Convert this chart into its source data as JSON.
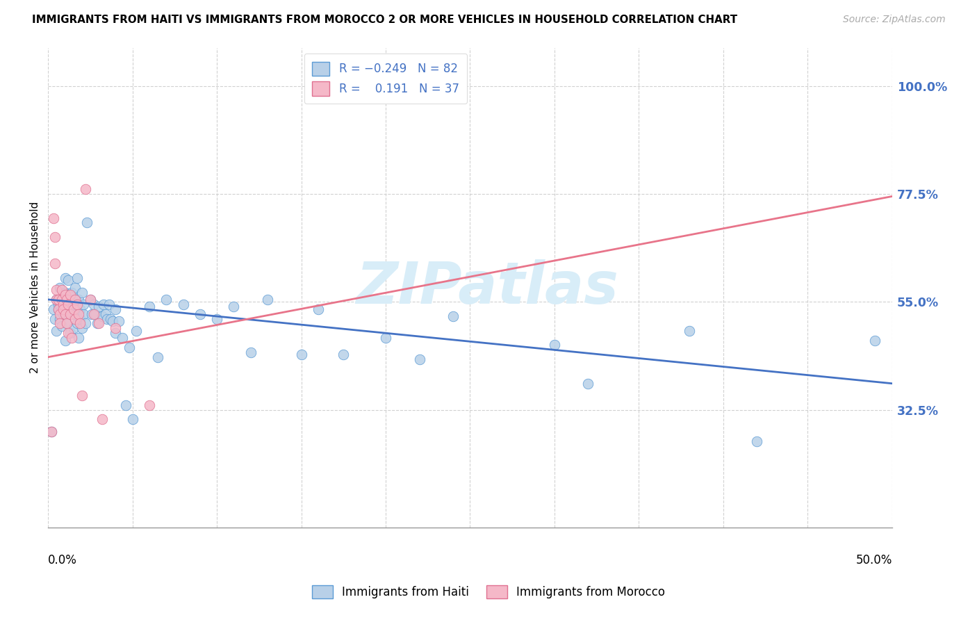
{
  "title": "IMMIGRANTS FROM HAITI VS IMMIGRANTS FROM MOROCCO 2 OR MORE VEHICLES IN HOUSEHOLD CORRELATION CHART",
  "source": "Source: ZipAtlas.com",
  "ylabel": "2 or more Vehicles in Household",
  "ytick_labels": [
    "32.5%",
    "55.0%",
    "77.5%",
    "100.0%"
  ],
  "ytick_vals": [
    0.325,
    0.55,
    0.775,
    1.0
  ],
  "xlim": [
    0.0,
    0.5
  ],
  "ylim": [
    0.08,
    1.08
  ],
  "xtick_label_left": "0.0%",
  "xtick_label_right": "50.0%",
  "haiti_color_fill": "#b8d0e8",
  "haiti_color_edge": "#5b9bd5",
  "morocco_color_fill": "#f5b8c8",
  "morocco_color_edge": "#e07090",
  "haiti_trend_color": "#4472c4",
  "morocco_trend_color": "#e8748a",
  "watermark_text": "ZIPatlas",
  "watermark_color": "#d8edf8",
  "haiti_trend": [
    0.0,
    0.555,
    0.5,
    0.38
  ],
  "morocco_trend": [
    0.0,
    0.435,
    0.5,
    0.77
  ],
  "haiti_points": [
    [
      0.002,
      0.28
    ],
    [
      0.003,
      0.535
    ],
    [
      0.004,
      0.515
    ],
    [
      0.005,
      0.555
    ],
    [
      0.005,
      0.49
    ],
    [
      0.006,
      0.535
    ],
    [
      0.006,
      0.545
    ],
    [
      0.007,
      0.58
    ],
    [
      0.007,
      0.515
    ],
    [
      0.007,
      0.545
    ],
    [
      0.008,
      0.5
    ],
    [
      0.008,
      0.535
    ],
    [
      0.009,
      0.555
    ],
    [
      0.009,
      0.525
    ],
    [
      0.01,
      0.6
    ],
    [
      0.01,
      0.47
    ],
    [
      0.01,
      0.57
    ],
    [
      0.011,
      0.505
    ],
    [
      0.011,
      0.565
    ],
    [
      0.012,
      0.535
    ],
    [
      0.012,
      0.595
    ],
    [
      0.013,
      0.485
    ],
    [
      0.013,
      0.54
    ],
    [
      0.014,
      0.525
    ],
    [
      0.014,
      0.57
    ],
    [
      0.015,
      0.495
    ],
    [
      0.015,
      0.555
    ],
    [
      0.016,
      0.525
    ],
    [
      0.016,
      0.58
    ],
    [
      0.017,
      0.505
    ],
    [
      0.017,
      0.6
    ],
    [
      0.018,
      0.475
    ],
    [
      0.018,
      0.555
    ],
    [
      0.019,
      0.515
    ],
    [
      0.019,
      0.535
    ],
    [
      0.02,
      0.495
    ],
    [
      0.02,
      0.57
    ],
    [
      0.021,
      0.525
    ],
    [
      0.021,
      0.545
    ],
    [
      0.022,
      0.505
    ],
    [
      0.023,
      0.715
    ],
    [
      0.025,
      0.555
    ],
    [
      0.026,
      0.525
    ],
    [
      0.027,
      0.545
    ],
    [
      0.028,
      0.525
    ],
    [
      0.029,
      0.505
    ],
    [
      0.03,
      0.54
    ],
    [
      0.032,
      0.52
    ],
    [
      0.033,
      0.545
    ],
    [
      0.034,
      0.525
    ],
    [
      0.035,
      0.515
    ],
    [
      0.036,
      0.545
    ],
    [
      0.037,
      0.515
    ],
    [
      0.038,
      0.51
    ],
    [
      0.04,
      0.485
    ],
    [
      0.04,
      0.535
    ],
    [
      0.042,
      0.51
    ],
    [
      0.044,
      0.475
    ],
    [
      0.046,
      0.335
    ],
    [
      0.048,
      0.455
    ],
    [
      0.05,
      0.305
    ],
    [
      0.052,
      0.49
    ],
    [
      0.06,
      0.54
    ],
    [
      0.065,
      0.435
    ],
    [
      0.07,
      0.555
    ],
    [
      0.08,
      0.545
    ],
    [
      0.09,
      0.525
    ],
    [
      0.1,
      0.515
    ],
    [
      0.11,
      0.54
    ],
    [
      0.12,
      0.445
    ],
    [
      0.13,
      0.555
    ],
    [
      0.15,
      0.44
    ],
    [
      0.16,
      0.535
    ],
    [
      0.175,
      0.44
    ],
    [
      0.2,
      0.475
    ],
    [
      0.22,
      0.43
    ],
    [
      0.24,
      0.52
    ],
    [
      0.3,
      0.46
    ],
    [
      0.32,
      0.38
    ],
    [
      0.38,
      0.49
    ],
    [
      0.42,
      0.26
    ],
    [
      0.49,
      0.47
    ]
  ],
  "morocco_points": [
    [
      0.002,
      0.28
    ],
    [
      0.003,
      0.725
    ],
    [
      0.004,
      0.685
    ],
    [
      0.004,
      0.63
    ],
    [
      0.005,
      0.575
    ],
    [
      0.005,
      0.555
    ],
    [
      0.006,
      0.535
    ],
    [
      0.006,
      0.555
    ],
    [
      0.007,
      0.525
    ],
    [
      0.007,
      0.505
    ],
    [
      0.008,
      0.575
    ],
    [
      0.008,
      0.555
    ],
    [
      0.009,
      0.545
    ],
    [
      0.009,
      0.535
    ],
    [
      0.01,
      0.565
    ],
    [
      0.01,
      0.525
    ],
    [
      0.011,
      0.555
    ],
    [
      0.011,
      0.505
    ],
    [
      0.012,
      0.545
    ],
    [
      0.012,
      0.485
    ],
    [
      0.013,
      0.565
    ],
    [
      0.013,
      0.525
    ],
    [
      0.014,
      0.475
    ],
    [
      0.015,
      0.535
    ],
    [
      0.016,
      0.555
    ],
    [
      0.016,
      0.515
    ],
    [
      0.017,
      0.545
    ],
    [
      0.018,
      0.525
    ],
    [
      0.019,
      0.505
    ],
    [
      0.02,
      0.355
    ],
    [
      0.022,
      0.785
    ],
    [
      0.025,
      0.555
    ],
    [
      0.027,
      0.525
    ],
    [
      0.03,
      0.505
    ],
    [
      0.032,
      0.305
    ],
    [
      0.04,
      0.495
    ],
    [
      0.06,
      0.335
    ]
  ]
}
